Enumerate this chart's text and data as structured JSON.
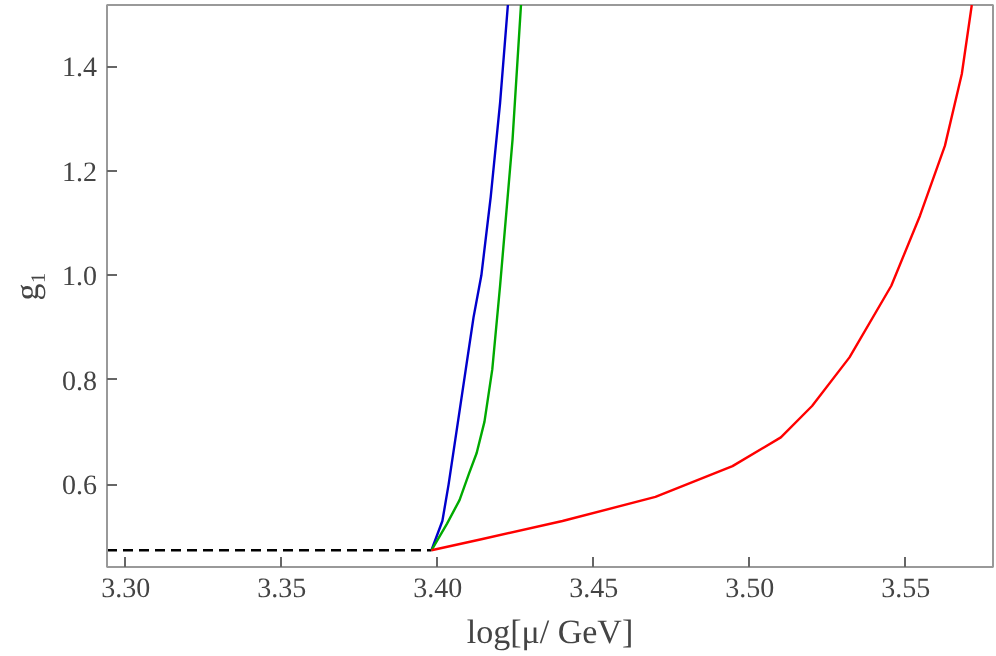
{
  "chart_data": {
    "type": "line",
    "xlabel": "log[μ/ GeV]",
    "ylabel": "g₁",
    "xlim": [
      3.294,
      3.578
    ],
    "ylim": [
      0.442,
      1.517
    ],
    "xticks": [
      {
        "value": 3.3,
        "label": "3.30"
      },
      {
        "value": 3.35,
        "label": "3.35"
      },
      {
        "value": 3.4,
        "label": "3.40"
      },
      {
        "value": 3.45,
        "label": "3.45"
      },
      {
        "value": 3.5,
        "label": "3.50"
      },
      {
        "value": 3.55,
        "label": "3.55"
      }
    ],
    "yticks": [
      0.6,
      0.8,
      {
        "value": 1.0,
        "label": "1.0"
      },
      1.2,
      1.4
    ],
    "grid": false,
    "marker": "none",
    "series": [
      {
        "color": "#000000",
        "line_style": "dashed",
        "x": [
          3.294,
          3.398
        ],
        "values": [
          0.474,
          0.474
        ]
      },
      {
        "color": "#0000cc",
        "x": [
          3.398,
          3.4015,
          3.4035,
          3.406,
          3.409,
          3.4115,
          3.414,
          3.417,
          3.42,
          3.4225
        ],
        "values": [
          0.474,
          0.53,
          0.6,
          0.7,
          0.82,
          0.92,
          1.0,
          1.15,
          1.33,
          1.517
        ]
      },
      {
        "color": "#00aa00",
        "x": [
          3.398,
          3.403,
          3.407,
          3.41,
          3.4125,
          3.415,
          3.4175,
          3.42,
          3.422,
          3.424,
          3.4267
        ],
        "values": [
          0.474,
          0.525,
          0.57,
          0.62,
          0.66,
          0.72,
          0.82,
          0.98,
          1.12,
          1.26,
          1.517
        ]
      },
      {
        "color": "#ff0000",
        "x": [
          3.398,
          3.414,
          3.44,
          3.4698,
          3.4945,
          3.51,
          3.52,
          3.532,
          3.5454,
          3.5546,
          3.5626,
          3.568,
          3.5712
        ],
        "values": [
          0.474,
          0.495,
          0.53,
          0.576,
          0.635,
          0.69,
          0.75,
          0.843,
          0.98,
          1.114,
          1.248,
          1.385,
          1.517
        ]
      }
    ]
  }
}
